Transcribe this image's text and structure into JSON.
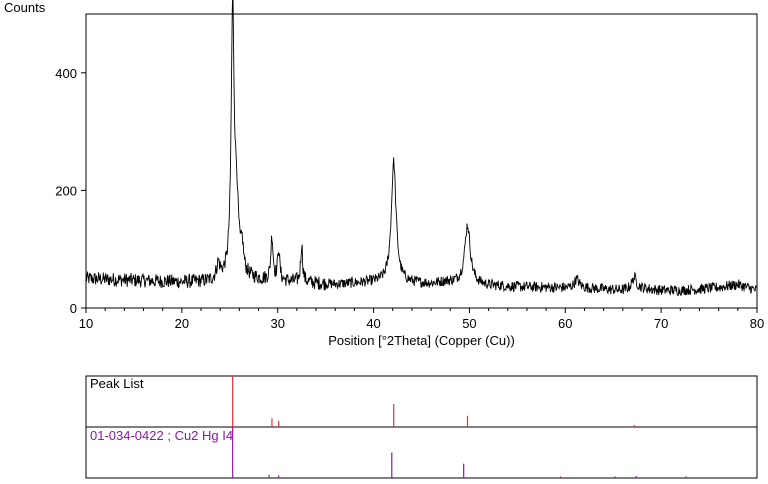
{
  "chart_data": {
    "type": "line",
    "ylabel": "Counts",
    "xlabel": "Position [°2Theta] (Copper (Cu))",
    "xlim": [
      10,
      80
    ],
    "ylim": [
      0,
      500
    ],
    "x_ticks": [
      10,
      20,
      30,
      40,
      50,
      60,
      70,
      80
    ],
    "y_ticks": [
      0,
      200,
      400
    ],
    "baseline": {
      "x": [
        10,
        15,
        20,
        23,
        24.5,
        26.5,
        28,
        31,
        34,
        36,
        38,
        40.5,
        44,
        46,
        47.5,
        52,
        55,
        58,
        60,
        62,
        64,
        66,
        68,
        70,
        72,
        74,
        76,
        78,
        80
      ],
      "y": [
        50,
        47,
        44,
        45,
        50,
        52,
        48,
        45,
        42,
        40,
        42,
        44,
        42,
        41,
        44,
        38,
        36,
        35,
        34,
        34,
        32,
        30,
        33,
        30,
        30,
        32,
        35,
        40,
        30
      ]
    },
    "noise_amplitude": 12,
    "peaks": [
      {
        "x": 23.8,
        "height": 25,
        "width": 0.2
      },
      {
        "x": 25.3,
        "height": 450,
        "width": 0.18
      },
      {
        "x": 25.7,
        "height": 120,
        "width": 0.25
      },
      {
        "x": 26.3,
        "height": 40,
        "width": 0.15
      },
      {
        "x": 29.4,
        "height": 75,
        "width": 0.14
      },
      {
        "x": 30.1,
        "height": 55,
        "width": 0.12
      },
      {
        "x": 32.5,
        "height": 65,
        "width": 0.12
      },
      {
        "x": 42.1,
        "height": 205,
        "width": 0.3
      },
      {
        "x": 49.8,
        "height": 100,
        "width": 0.35
      },
      {
        "x": 61.2,
        "height": 15,
        "width": 0.3
      },
      {
        "x": 67.2,
        "height": 20,
        "width": 0.3
      }
    ],
    "peak_list": {
      "label": "Peak List",
      "color": "#d9363e",
      "x": [
        25.3,
        29.4,
        30.1,
        42.1,
        49.8,
        67.2
      ],
      "rel": [
        1.0,
        0.17,
        0.12,
        0.45,
        0.22,
        0.04
      ]
    },
    "reference": {
      "label": "01-034-0422 ; Cu2 Hg I4",
      "color": "#8b1a9c",
      "x": [
        25.3,
        29.1,
        30.1,
        41.9,
        49.4,
        59.5,
        65.2,
        67.4,
        72.6
      ],
      "rel": [
        1.0,
        0.06,
        0.05,
        0.5,
        0.28,
        0.03,
        0.03,
        0.04,
        0.03
      ]
    }
  }
}
